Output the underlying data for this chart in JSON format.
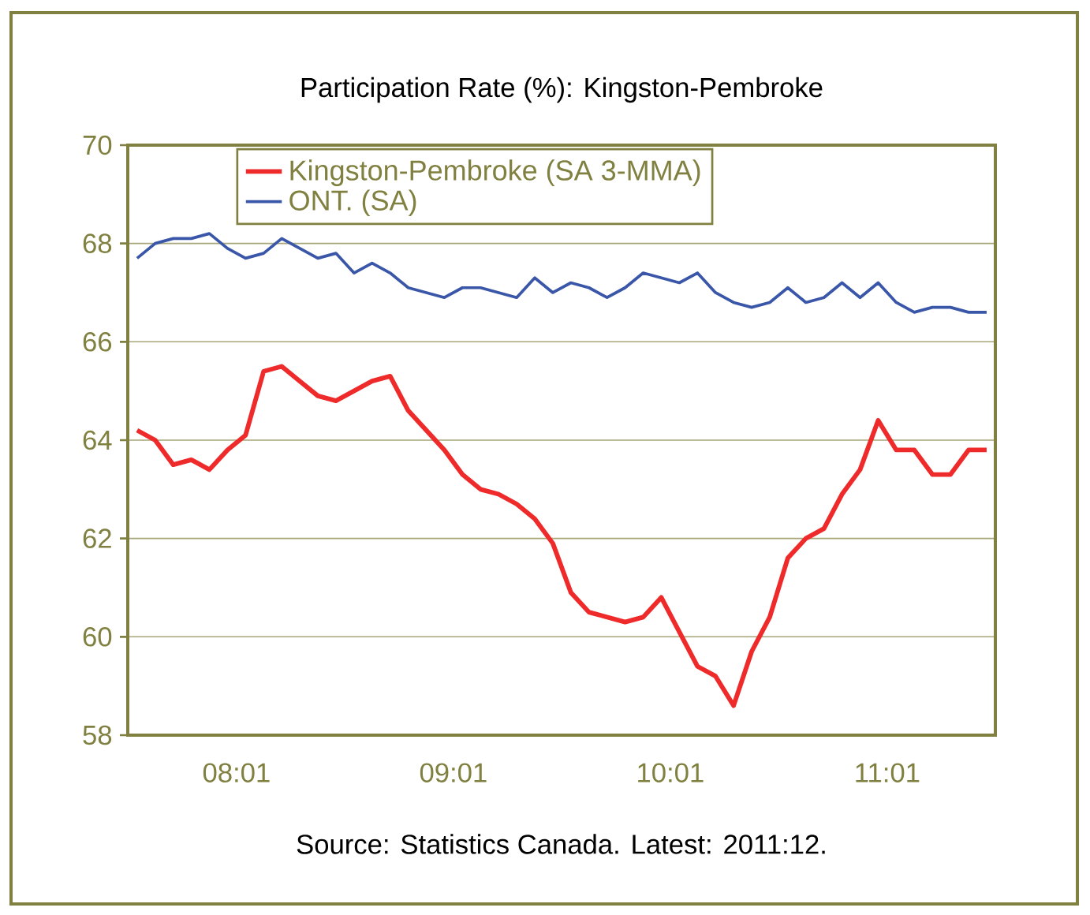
{
  "chart_data": {
    "type": "line",
    "title": "Participation Rate (%): Kingston-Pembroke",
    "x": [
      "2008-01",
      "2008-02",
      "2008-03",
      "2008-04",
      "2008-05",
      "2008-06",
      "2008-07",
      "2008-08",
      "2008-09",
      "2008-10",
      "2008-11",
      "2008-12",
      "2009-01",
      "2009-02",
      "2009-03",
      "2009-04",
      "2009-05",
      "2009-06",
      "2009-07",
      "2009-08",
      "2009-09",
      "2009-10",
      "2009-11",
      "2009-12",
      "2010-01",
      "2010-02",
      "2010-03",
      "2010-04",
      "2010-05",
      "2010-06",
      "2010-07",
      "2010-08",
      "2010-09",
      "2010-10",
      "2010-11",
      "2010-12",
      "2011-01",
      "2011-02",
      "2011-03",
      "2011-04",
      "2011-05",
      "2011-06",
      "2011-07",
      "2011-08",
      "2011-09",
      "2011-10",
      "2011-11",
      "2011-12"
    ],
    "xlim": [
      "2007-12-16",
      "2011-12-16"
    ],
    "xticks": [
      {
        "value": "2008-06-16",
        "label": "08:01"
      },
      {
        "value": "2009-06-16",
        "label": "09:01"
      },
      {
        "value": "2010-06-16",
        "label": "10:01"
      },
      {
        "value": "2011-06-16",
        "label": "11:01"
      }
    ],
    "series": [
      {
        "name": "Kingston-Pembroke (SA 3-MMA)",
        "color": "#ee2a2a",
        "values": [
          64.2,
          64.0,
          63.5,
          63.6,
          63.4,
          63.8,
          64.1,
          65.4,
          65.5,
          65.2,
          64.9,
          64.8,
          65.0,
          65.2,
          65.3,
          64.6,
          64.2,
          63.8,
          63.3,
          63.0,
          62.9,
          62.7,
          62.4,
          61.9,
          60.9,
          60.5,
          60.4,
          60.3,
          60.4,
          60.8,
          60.1,
          59.4,
          59.2,
          58.6,
          59.7,
          60.4,
          61.6,
          62.0,
          62.2,
          62.9,
          63.4,
          64.4,
          63.8,
          63.8,
          63.3,
          63.3,
          63.8,
          63.8
        ]
      },
      {
        "name": "ONT. (SA)",
        "color": "#3a56a8",
        "values": [
          67.7,
          68.0,
          68.1,
          68.1,
          68.2,
          67.9,
          67.7,
          67.8,
          68.1,
          67.9,
          67.7,
          67.8,
          67.4,
          67.6,
          67.4,
          67.1,
          67.0,
          66.9,
          67.1,
          67.1,
          67.0,
          66.9,
          67.3,
          67.0,
          67.2,
          67.1,
          66.9,
          67.1,
          67.4,
          67.3,
          67.2,
          67.4,
          67.0,
          66.8,
          66.7,
          66.8,
          67.1,
          66.8,
          66.9,
          67.2,
          66.9,
          67.2,
          66.8,
          66.6,
          66.7,
          66.7,
          66.6,
          66.6
        ]
      }
    ],
    "ylim": [
      58,
      70
    ],
    "yticks": [
      58,
      60,
      62,
      64,
      66,
      68,
      70
    ],
    "grid": "y",
    "legend": "top",
    "marker": "none",
    "line_style": "solid",
    "annotations": [
      "Source: Statistics Canada. Latest: 2011:12."
    ]
  }
}
